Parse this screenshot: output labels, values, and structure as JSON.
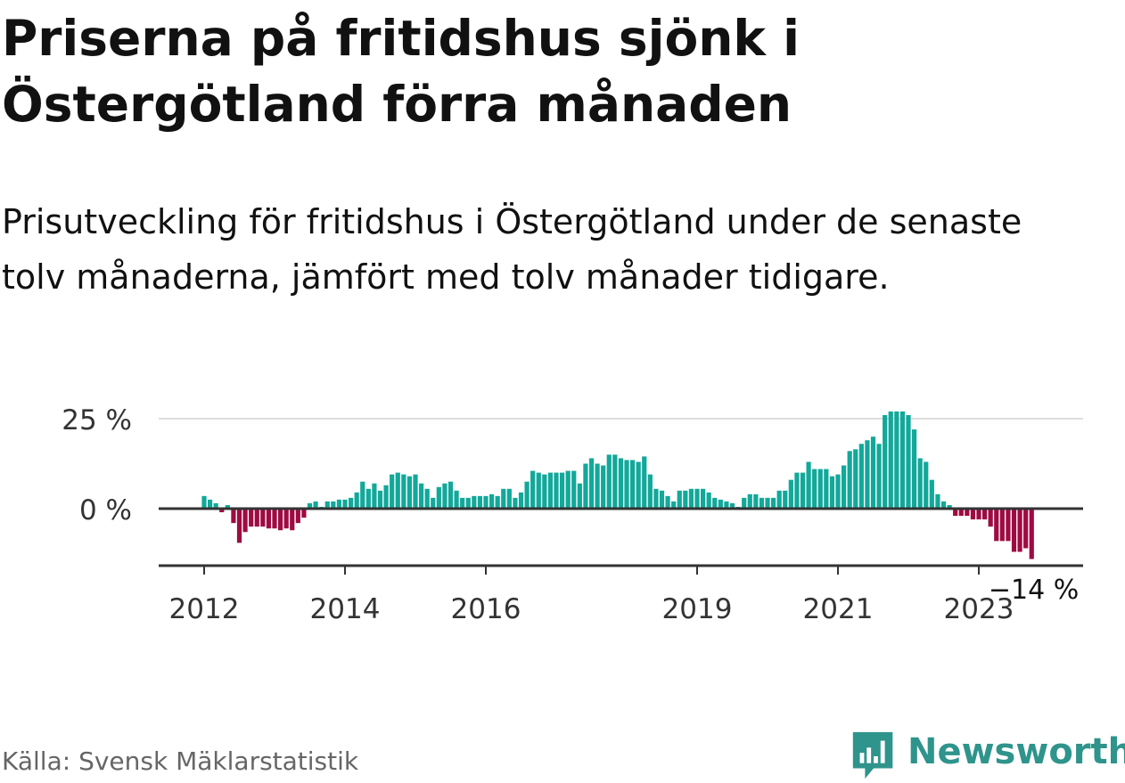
{
  "title": "Priserna på fritidshus sjönk i Östergötland förra månaden",
  "subtitle": "Prisutveckling för fritidshus i Östergötland under de senaste tolv månaderna, jämfört med tolv månader tidigare.",
  "source": "Källa: Svensk Mäklarstatistik",
  "brand": "Newsworthy",
  "colors": {
    "positive": "#12a89a",
    "negative": "#9e0b42",
    "brand": "#2e948c"
  },
  "chart_data": {
    "type": "bar",
    "title": "Priserna på fritidshus sjönk i Östergötland förra månaden",
    "xlabel": "",
    "ylabel": "",
    "ylim": [
      -17,
      28
    ],
    "y_ticks": [
      {
        "value": 25,
        "label": "25 %"
      },
      {
        "value": 0,
        "label": "0 %"
      }
    ],
    "x_ticks": [
      {
        "value": 2012,
        "label": "2012"
      },
      {
        "value": 2014,
        "label": "2014"
      },
      {
        "value": 2016,
        "label": "2016"
      },
      {
        "value": 2019,
        "label": "2019"
      },
      {
        "value": 2021,
        "label": "2021"
      },
      {
        "value": 2023,
        "label": "2023"
      }
    ],
    "start": "2012-01",
    "series": [
      {
        "values": [
          3.5,
          2.5,
          1.5,
          -1,
          1,
          -4,
          -9.5,
          -6.5,
          -5,
          -5,
          -5,
          -5.5,
          -5.5,
          -6,
          -5.5,
          -6,
          -4,
          -2.5,
          1.5,
          2,
          0.5,
          2,
          2,
          2.5,
          2.5,
          3,
          4.5,
          7.5,
          5.5,
          7,
          5,
          6.5,
          9.5,
          10,
          9.5,
          9,
          9.5,
          7,
          5.5,
          3,
          6,
          7,
          7.5,
          5,
          3,
          3,
          3.5,
          3.5,
          3.5,
          4,
          3.5,
          5.5,
          5.5,
          3,
          4.5,
          7.5,
          10.5,
          10,
          9.5,
          10,
          10,
          10,
          10.5,
          10.5,
          7,
          12.5,
          14,
          12.5,
          12,
          15,
          15,
          14,
          13.5,
          13.5,
          13,
          14.5,
          9.5,
          5.5,
          5,
          3.5,
          2,
          5,
          5,
          5.5,
          5.5,
          5.5,
          4.5,
          3,
          2.5,
          2,
          1.5,
          0.5,
          3,
          4,
          4,
          3,
          3,
          3,
          5,
          5,
          8,
          10,
          10,
          13,
          11,
          11,
          11,
          9,
          9.5,
          12,
          16,
          16.5,
          18,
          19,
          20,
          18,
          26,
          27,
          27,
          27,
          26,
          22,
          14,
          13,
          8,
          4,
          2,
          1,
          -2,
          -2,
          -2,
          -3,
          -3,
          -3,
          -5,
          -9,
          -9,
          -9,
          -12,
          -12,
          -11,
          -14
        ]
      }
    ],
    "last_label": "−14 %",
    "grid": true,
    "legend": "none"
  }
}
